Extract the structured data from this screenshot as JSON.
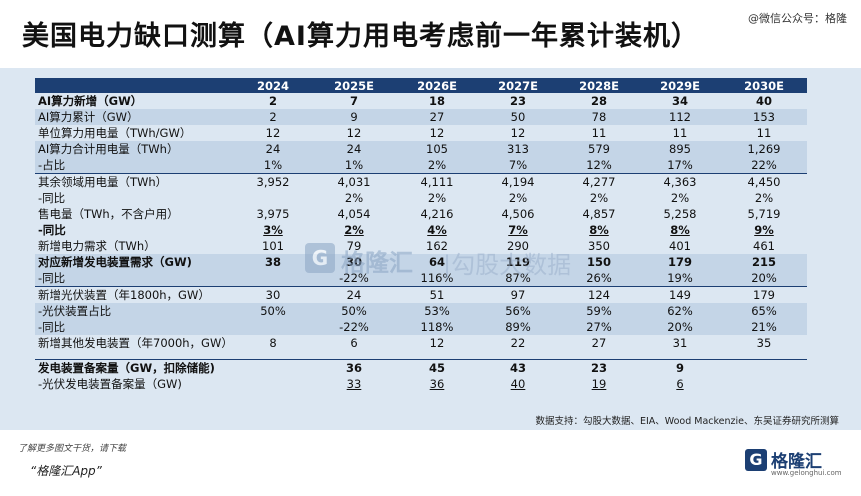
{
  "title": "美国电力缺口测算（AI算力用电考虑前一年累计装机）",
  "wechat": "@微信公众号：格隆",
  "table": {
    "headers": [
      "",
      "2024",
      "2025E",
      "2026E",
      "2027E",
      "2028E",
      "2029E",
      "2030E"
    ],
    "rows": [
      {
        "cells": [
          "AI算力新增（GW）",
          "2",
          "7",
          "18",
          "23",
          "28",
          "34",
          "40"
        ],
        "style": "b"
      },
      {
        "cells": [
          "AI算力累计（GW）",
          "2",
          "9",
          "27",
          "50",
          "78",
          "112",
          "153"
        ],
        "style": "shade"
      },
      {
        "cells": [
          "单位算力用电量（TWh/GW）",
          "12",
          "12",
          "12",
          "12",
          "11",
          "11",
          "11"
        ],
        "style": ""
      },
      {
        "cells": [
          "AI算力合计用电量（TWh）",
          "24",
          "24",
          "105",
          "313",
          "579",
          "895",
          "1,269"
        ],
        "style": "shade"
      },
      {
        "cells": [
          "-占比",
          "1%",
          "1%",
          "2%",
          "7%",
          "12%",
          "17%",
          "22%"
        ],
        "style": "shade"
      },
      {
        "cells": [
          "其余领域用电量（TWh）",
          "3,952",
          "4,031",
          "4,111",
          "4,194",
          "4,277",
          "4,363",
          "4,450"
        ],
        "style": "sep"
      },
      {
        "cells": [
          "-同比",
          "",
          "2%",
          "2%",
          "2%",
          "2%",
          "2%",
          "2%"
        ],
        "style": ""
      },
      {
        "cells": [
          "售电量（TWh，不含户用）",
          "3,975",
          "4,054",
          "4,216",
          "4,506",
          "4,857",
          "5,258",
          "5,719"
        ],
        "style": ""
      },
      {
        "cells": [
          "-同比",
          "3%",
          "2%",
          "4%",
          "7%",
          "8%",
          "8%",
          "9%"
        ],
        "style": "b u"
      },
      {
        "cells": [
          "新增电力需求（TWh）",
          "101",
          "79",
          "162",
          "290",
          "350",
          "401",
          "461"
        ],
        "style": ""
      },
      {
        "cells": [
          "对应新增发电装置需求（GW)",
          "38",
          "30",
          "64",
          "119",
          "150",
          "179",
          "215"
        ],
        "style": "b shade"
      },
      {
        "cells": [
          "-同比",
          "",
          "-22%",
          "116%",
          "87%",
          "26%",
          "19%",
          "20%"
        ],
        "style": "shade"
      },
      {
        "cells": [
          "新增光伏装置（年1800h，GW）",
          "30",
          "24",
          "51",
          "97",
          "124",
          "149",
          "179"
        ],
        "style": "sep"
      },
      {
        "cells": [
          "-光伏装置占比",
          "50%",
          "50%",
          "53%",
          "56%",
          "59%",
          "62%",
          "65%"
        ],
        "style": "shade"
      },
      {
        "cells": [
          "-同比",
          "",
          "-22%",
          "118%",
          "89%",
          "27%",
          "20%",
          "21%"
        ],
        "style": "shade"
      },
      {
        "cells": [
          "新增其他发电装置（年7000h，GW）",
          "8",
          "6",
          "12",
          "22",
          "27",
          "31",
          "35"
        ],
        "style": ""
      },
      {
        "cells": [
          "",
          "",
          "",
          "",
          "",
          "",
          "",
          ""
        ],
        "style": "gap"
      },
      {
        "cells": [
          "发电装置备案量（GW，扣除储能)",
          "",
          "36",
          "45",
          "43",
          "23",
          "9",
          ""
        ],
        "style": "b sep"
      },
      {
        "cells": [
          "-光伏发电装置备案量（GW)",
          "",
          "33",
          "36",
          "40",
          "19",
          "6",
          ""
        ],
        "style": "u"
      }
    ]
  },
  "source": "数据支持：勾股大数据、EIA、Wood Mackenzie、东吴证券研究所测算",
  "footer": {
    "line1": "了解更多图文干货，请下载",
    "line2": "“格隆汇App”"
  },
  "brand": {
    "logo": "G",
    "name": "格隆汇",
    "url": "www.gelonghui.com"
  },
  "watermark": {
    "logo": "G",
    "name": "格隆汇",
    "text": "|勾股大数据"
  }
}
